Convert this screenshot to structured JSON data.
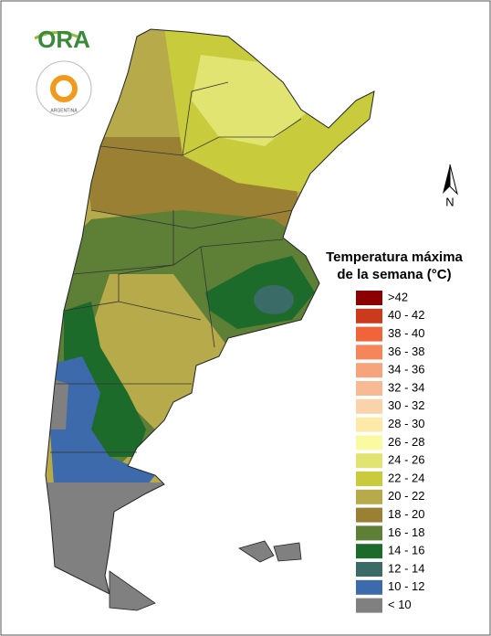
{
  "logo": {
    "text": "ORA",
    "emblem_text": "ARGENTINA"
  },
  "compass": "N",
  "legend": {
    "title": [
      "Temperatura máxima",
      "de la semana (°C)"
    ],
    "items": [
      {
        "label": ">42",
        "color": "#8b0000"
      },
      {
        "label": "40 - 42",
        "color": "#cc3a1e"
      },
      {
        "label": "38 - 40",
        "color": "#f0643a"
      },
      {
        "label": "36 - 38",
        "color": "#f4865a"
      },
      {
        "label": "34 - 36",
        "color": "#f5a47c"
      },
      {
        "label": "32 - 34",
        "color": "#f8ba92"
      },
      {
        "label": "30 - 32",
        "color": "#fbd3aa"
      },
      {
        "label": "28 - 30",
        "color": "#fde9a8"
      },
      {
        "label": "26 - 28",
        "color": "#fafaa2"
      },
      {
        "label": "24 - 26",
        "color": "#e2e472"
      },
      {
        "label": "22 - 24",
        "color": "#c8cc3c"
      },
      {
        "label": "20 - 22",
        "color": "#b6aa4a"
      },
      {
        "label": "18 - 20",
        "color": "#9a8032"
      },
      {
        "label": "16 - 18",
        "color": "#5d7f36"
      },
      {
        "label": "14 - 16",
        "color": "#1d6b2b"
      },
      {
        "label": "12 - 14",
        "color": "#3b6b67"
      },
      {
        "label": "10 - 12",
        "color": "#3d6aaa"
      },
      {
        "label": "< 10",
        "color": "#808080"
      }
    ]
  }
}
